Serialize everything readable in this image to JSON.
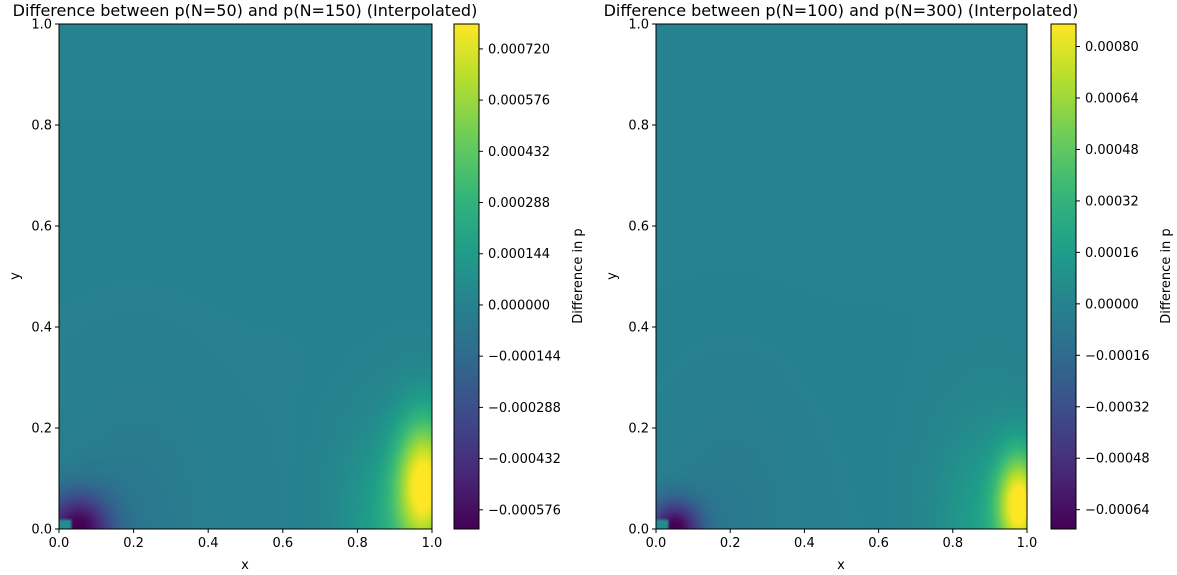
{
  "chart_data": [
    {
      "type": "heatmap",
      "title": "Difference between p(N=50) and p(N=150) (Interpolated)",
      "xlabel": "x",
      "ylabel": "y",
      "xlim": [
        0,
        1
      ],
      "ylim": [
        0,
        1
      ],
      "xticks": [
        "0.0",
        "0.2",
        "0.4",
        "0.6",
        "0.8",
        "1.0"
      ],
      "yticks": [
        "0.0",
        "0.2",
        "0.4",
        "0.6",
        "0.8",
        "1.0"
      ],
      "colormap": "viridis",
      "colorbar": {
        "label": "Difference in p",
        "vmin": -0.00063,
        "vmax": 0.00079,
        "ticks": [
          {
            "v": -0.000576,
            "label": "−0.000576"
          },
          {
            "v": -0.000432,
            "label": "−0.000432"
          },
          {
            "v": -0.000288,
            "label": "−0.000288"
          },
          {
            "v": -0.000144,
            "label": "−0.000144"
          },
          {
            "v": 0.0,
            "label": "0.000000"
          },
          {
            "v": 0.000144,
            "label": "0.000144"
          },
          {
            "v": 0.000288,
            "label": "0.000288"
          },
          {
            "v": 0.000432,
            "label": "0.000432"
          },
          {
            "v": 0.000576,
            "label": "0.000576"
          },
          {
            "v": 0.00072,
            "label": "0.000720"
          }
        ]
      },
      "field": {
        "min_at": [
          0.05,
          0.0
        ],
        "max_at": [
          0.98,
          0.09
        ]
      }
    },
    {
      "type": "heatmap",
      "title": "Difference between p(N=100) and p(N=300) (Interpolated)",
      "xlabel": "x",
      "ylabel": "y",
      "xlim": [
        0,
        1
      ],
      "ylim": [
        0,
        1
      ],
      "xticks": [
        "0.0",
        "0.2",
        "0.4",
        "0.6",
        "0.8",
        "1.0"
      ],
      "yticks": [
        "0.0",
        "0.2",
        "0.4",
        "0.6",
        "0.8",
        "1.0"
      ],
      "colormap": "viridis",
      "colorbar": {
        "label": "Difference in p",
        "vmin": -0.0007,
        "vmax": 0.00087,
        "ticks": [
          {
            "v": -0.00064,
            "label": "−0.00064"
          },
          {
            "v": -0.00048,
            "label": "−0.00048"
          },
          {
            "v": -0.00032,
            "label": "−0.00032"
          },
          {
            "v": -0.00016,
            "label": "−0.00016"
          },
          {
            "v": 0.0,
            "label": "0.00000"
          },
          {
            "v": 0.00016,
            "label": "0.00016"
          },
          {
            "v": 0.00032,
            "label": "0.00032"
          },
          {
            "v": 0.00048,
            "label": "0.00048"
          },
          {
            "v": 0.00064,
            "label": "0.00064"
          },
          {
            "v": 0.0008,
            "label": "0.00080"
          }
        ]
      },
      "field": {
        "min_at": [
          0.05,
          0.0
        ],
        "max_at": [
          0.98,
          0.05
        ]
      }
    }
  ]
}
